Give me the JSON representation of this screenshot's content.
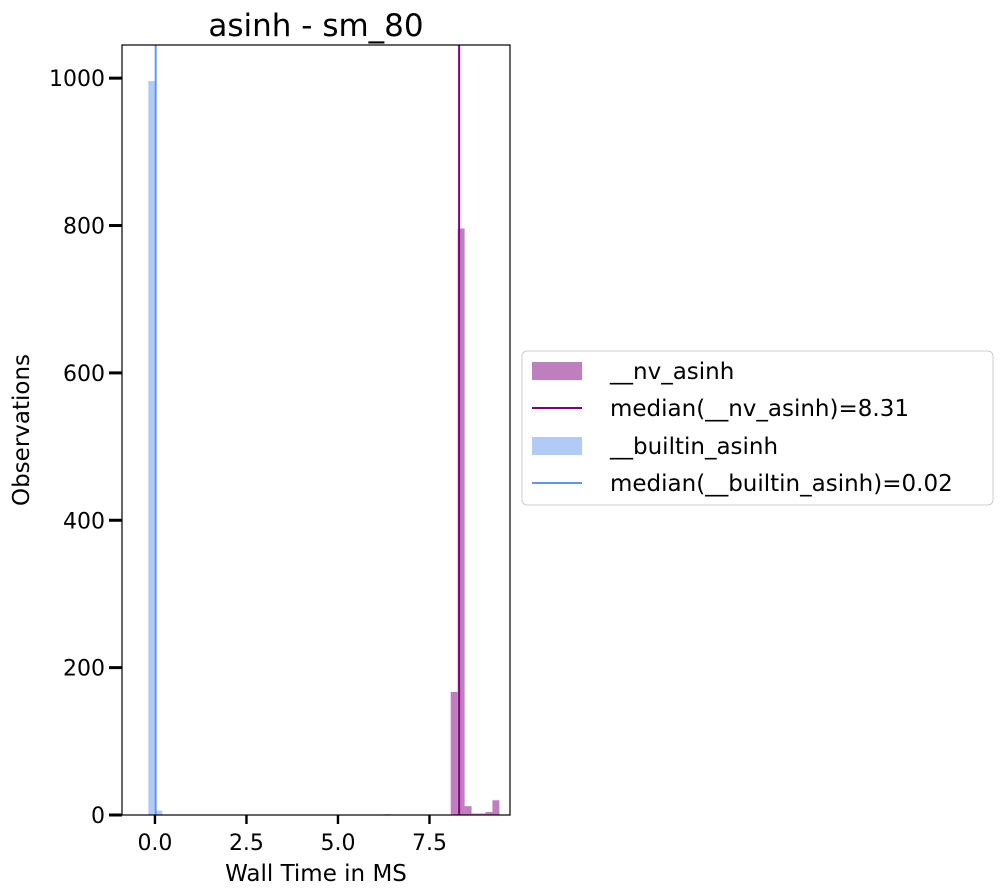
{
  "chart_data": {
    "type": "histogram",
    "title": "asinh - sm_80",
    "xlabel": "Wall Time in MS",
    "ylabel": "Observations",
    "xlim": [
      -0.9,
      9.7
    ],
    "ylim": [
      0,
      1045
    ],
    "xticks": [
      0.0,
      2.5,
      5.0,
      7.5
    ],
    "xtick_labels": [
      "0.0",
      "2.5",
      "5.0",
      "7.5"
    ],
    "yticks": [
      0,
      200,
      400,
      600,
      800,
      1000
    ],
    "ytick_labels": [
      "0",
      "200",
      "400",
      "600",
      "800",
      "1000"
    ],
    "grid": false,
    "legend_position": "right-outside",
    "series": [
      {
        "name": "__nv_asinh",
        "color": "#800080",
        "opacity": 0.5,
        "bin_width": 0.19,
        "bins": [
          {
            "x0": 6.25,
            "count": 1
          },
          {
            "x0": 8.08,
            "count": 167
          },
          {
            "x0": 8.27,
            "count": 796
          },
          {
            "x0": 8.46,
            "count": 12
          },
          {
            "x0": 8.65,
            "count": 2
          },
          {
            "x0": 8.84,
            "count": 2
          },
          {
            "x0": 9.03,
            "count": 4
          },
          {
            "x0": 9.22,
            "count": 20
          }
        ]
      },
      {
        "name": "__builtin_asinh",
        "color": "#6495ED",
        "opacity": 0.5,
        "bin_width": 0.19,
        "bins": [
          {
            "x0": -0.18,
            "count": 996
          },
          {
            "x0": 0.01,
            "count": 6
          }
        ]
      }
    ],
    "median_lines": [
      {
        "name": "median(__nv_asinh)=8.31",
        "value": 8.31,
        "color": "#800080"
      },
      {
        "name": "median(__builtin_asinh)=0.02",
        "value": 0.02,
        "color": "#6495ED"
      }
    ]
  }
}
